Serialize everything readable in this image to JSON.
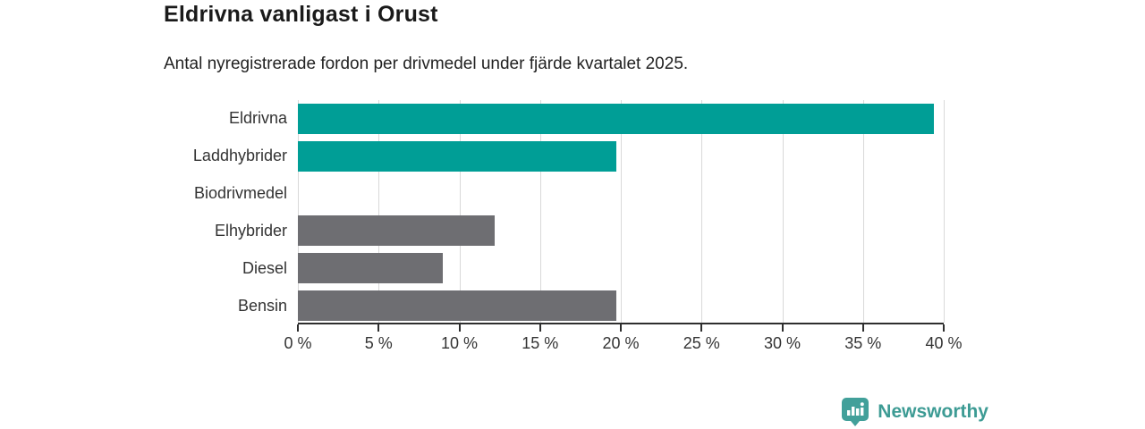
{
  "header": {
    "title": "Eldrivna vanligast i Orust",
    "subtitle": "Antal nyregistrerade fordon per drivmedel under fjärde kvartalet 2025."
  },
  "chart_data": {
    "type": "bar",
    "orientation": "horizontal",
    "title": "Eldrivna vanligast i Orust",
    "subtitle": "Antal nyregistrerade fordon per drivmedel under fjärde kvartalet 2025.",
    "categories": [
      "Eldrivna",
      "Laddhybrider",
      "Biodrivmedel",
      "Elhybrider",
      "Diesel",
      "Bensin"
    ],
    "values": [
      39.4,
      19.7,
      0,
      12.2,
      9.0,
      19.7
    ],
    "unit": "%",
    "bar_colors": [
      "#009e96",
      "#009e96",
      "#6e6e72",
      "#6e6e72",
      "#6e6e72",
      "#6e6e72"
    ],
    "highlight_color": "#009e96",
    "default_color": "#6e6e72",
    "xlim": [
      0,
      40
    ],
    "x_ticks": [
      0,
      5,
      10,
      15,
      20,
      25,
      30,
      35,
      40
    ],
    "x_tick_labels": [
      "0 %",
      "5 %",
      "10 %",
      "15 %",
      "20 %",
      "25 %",
      "30 %",
      "35 %",
      "40 %"
    ],
    "grid": true,
    "gridline_color": "#d9d9d9",
    "axis_color": "#2e2e2e",
    "legend": "none"
  },
  "footer": {
    "brand": "Newsworthy",
    "brand_color": "#3d9b94",
    "logo_icon": "newsworthy-bubble-barchart-icon"
  }
}
